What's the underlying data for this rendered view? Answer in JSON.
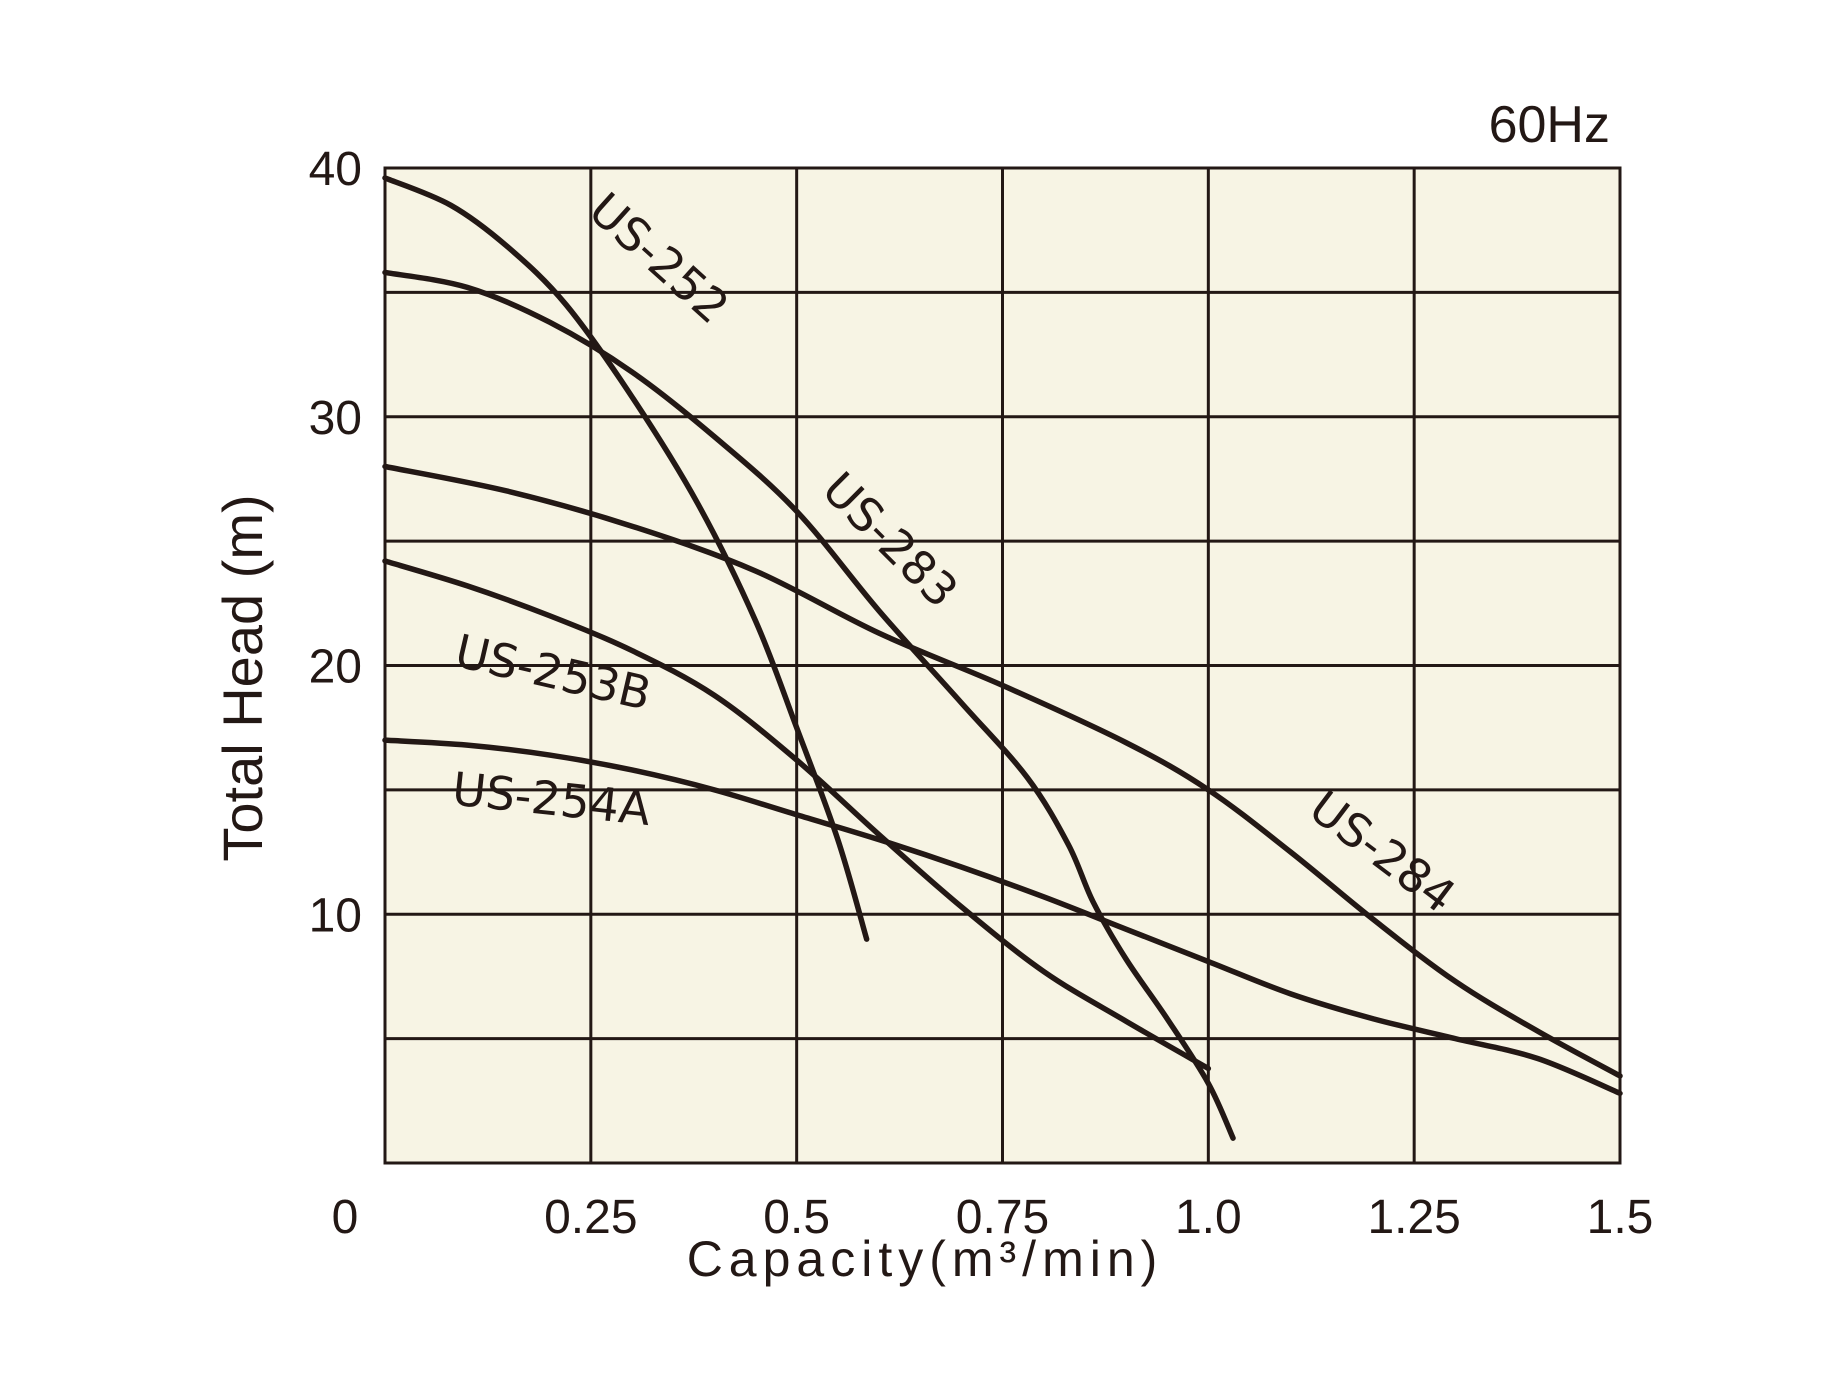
{
  "chart_data": {
    "type": "line",
    "frequency_label": "60Hz",
    "xlabel": "Capacity",
    "xlabel_unit": "(m³/min)",
    "ylabel": "Total Head (m)",
    "xlim": [
      0,
      1.5
    ],
    "ylim": [
      0,
      40
    ],
    "x_ticks": [
      0,
      0.25,
      0.5,
      0.75,
      1.0,
      1.25,
      1.5
    ],
    "x_tick_labels": [
      "0",
      "0.25",
      "0.5",
      "0.75",
      "1.0",
      "1.25",
      "1.5"
    ],
    "y_ticks": [
      10,
      20,
      30,
      40
    ],
    "y_tick_labels": [
      "10",
      "20",
      "30",
      "40"
    ],
    "grid_x": [
      0.25,
      0.5,
      0.75,
      1.0,
      1.25
    ],
    "grid_y": [
      5,
      10,
      15,
      20,
      25,
      30,
      35
    ],
    "grid": true,
    "background_color": "#f7f4e4",
    "line_color": "#231815",
    "series": [
      {
        "name": "US-252",
        "x": [
          0,
          0.08,
          0.15,
          0.22,
          0.3,
          0.38,
          0.45,
          0.5,
          0.55,
          0.585
        ],
        "y": [
          39.6,
          38.5,
          36.8,
          34.5,
          30.8,
          26.5,
          21.8,
          17.5,
          13.0,
          9.0
        ]
      },
      {
        "name": "US-283",
        "x": [
          0,
          0.1,
          0.2,
          0.3,
          0.4,
          0.5,
          0.6,
          0.7,
          0.78,
          0.83,
          0.86,
          0.9,
          0.95,
          1.0,
          1.03
        ],
        "y": [
          35.8,
          35.2,
          33.8,
          31.8,
          29.2,
          26.2,
          22.2,
          18.5,
          15.5,
          12.8,
          10.5,
          8.2,
          5.8,
          3.2,
          1.0
        ]
      },
      {
        "name": "US-284",
        "x": [
          0,
          0.15,
          0.3,
          0.45,
          0.6,
          0.75,
          0.9,
          1.0,
          1.1,
          1.2,
          1.3,
          1.4,
          1.5
        ],
        "y": [
          28.0,
          27.0,
          25.6,
          23.8,
          21.3,
          19.2,
          16.9,
          15.0,
          12.5,
          9.8,
          7.3,
          5.3,
          3.5
        ]
      },
      {
        "name": "US-253B",
        "x": [
          0,
          0.1,
          0.2,
          0.3,
          0.4,
          0.5,
          0.6,
          0.7,
          0.8,
          0.9,
          1.0
        ],
        "y": [
          24.2,
          23.2,
          22.0,
          20.6,
          18.8,
          16.2,
          13.2,
          10.3,
          7.7,
          5.7,
          3.8
        ]
      },
      {
        "name": "US-254A",
        "x": [
          0,
          0.1,
          0.2,
          0.3,
          0.4,
          0.5,
          0.6,
          0.7,
          0.8,
          0.9,
          1.0,
          1.1,
          1.2,
          1.3,
          1.4,
          1.5
        ],
        "y": [
          17.0,
          16.8,
          16.4,
          15.8,
          15.0,
          14.0,
          13.0,
          11.9,
          10.7,
          9.4,
          8.1,
          6.8,
          5.8,
          5.0,
          4.2,
          2.8
        ]
      }
    ],
    "series_labels": [
      {
        "name": "US-252",
        "x": 0.32,
        "y": 35.9,
        "angle": 42
      },
      {
        "name": "US-283",
        "x": 0.6,
        "y": 24.6,
        "angle": 45
      },
      {
        "name": "US-253B",
        "x": 0.2,
        "y": 19.1,
        "angle": 13
      },
      {
        "name": "US-254A",
        "x": 0.2,
        "y": 14.0,
        "angle": 6
      },
      {
        "name": "US-284",
        "x": 1.2,
        "y": 12.0,
        "angle": 37
      }
    ]
  }
}
